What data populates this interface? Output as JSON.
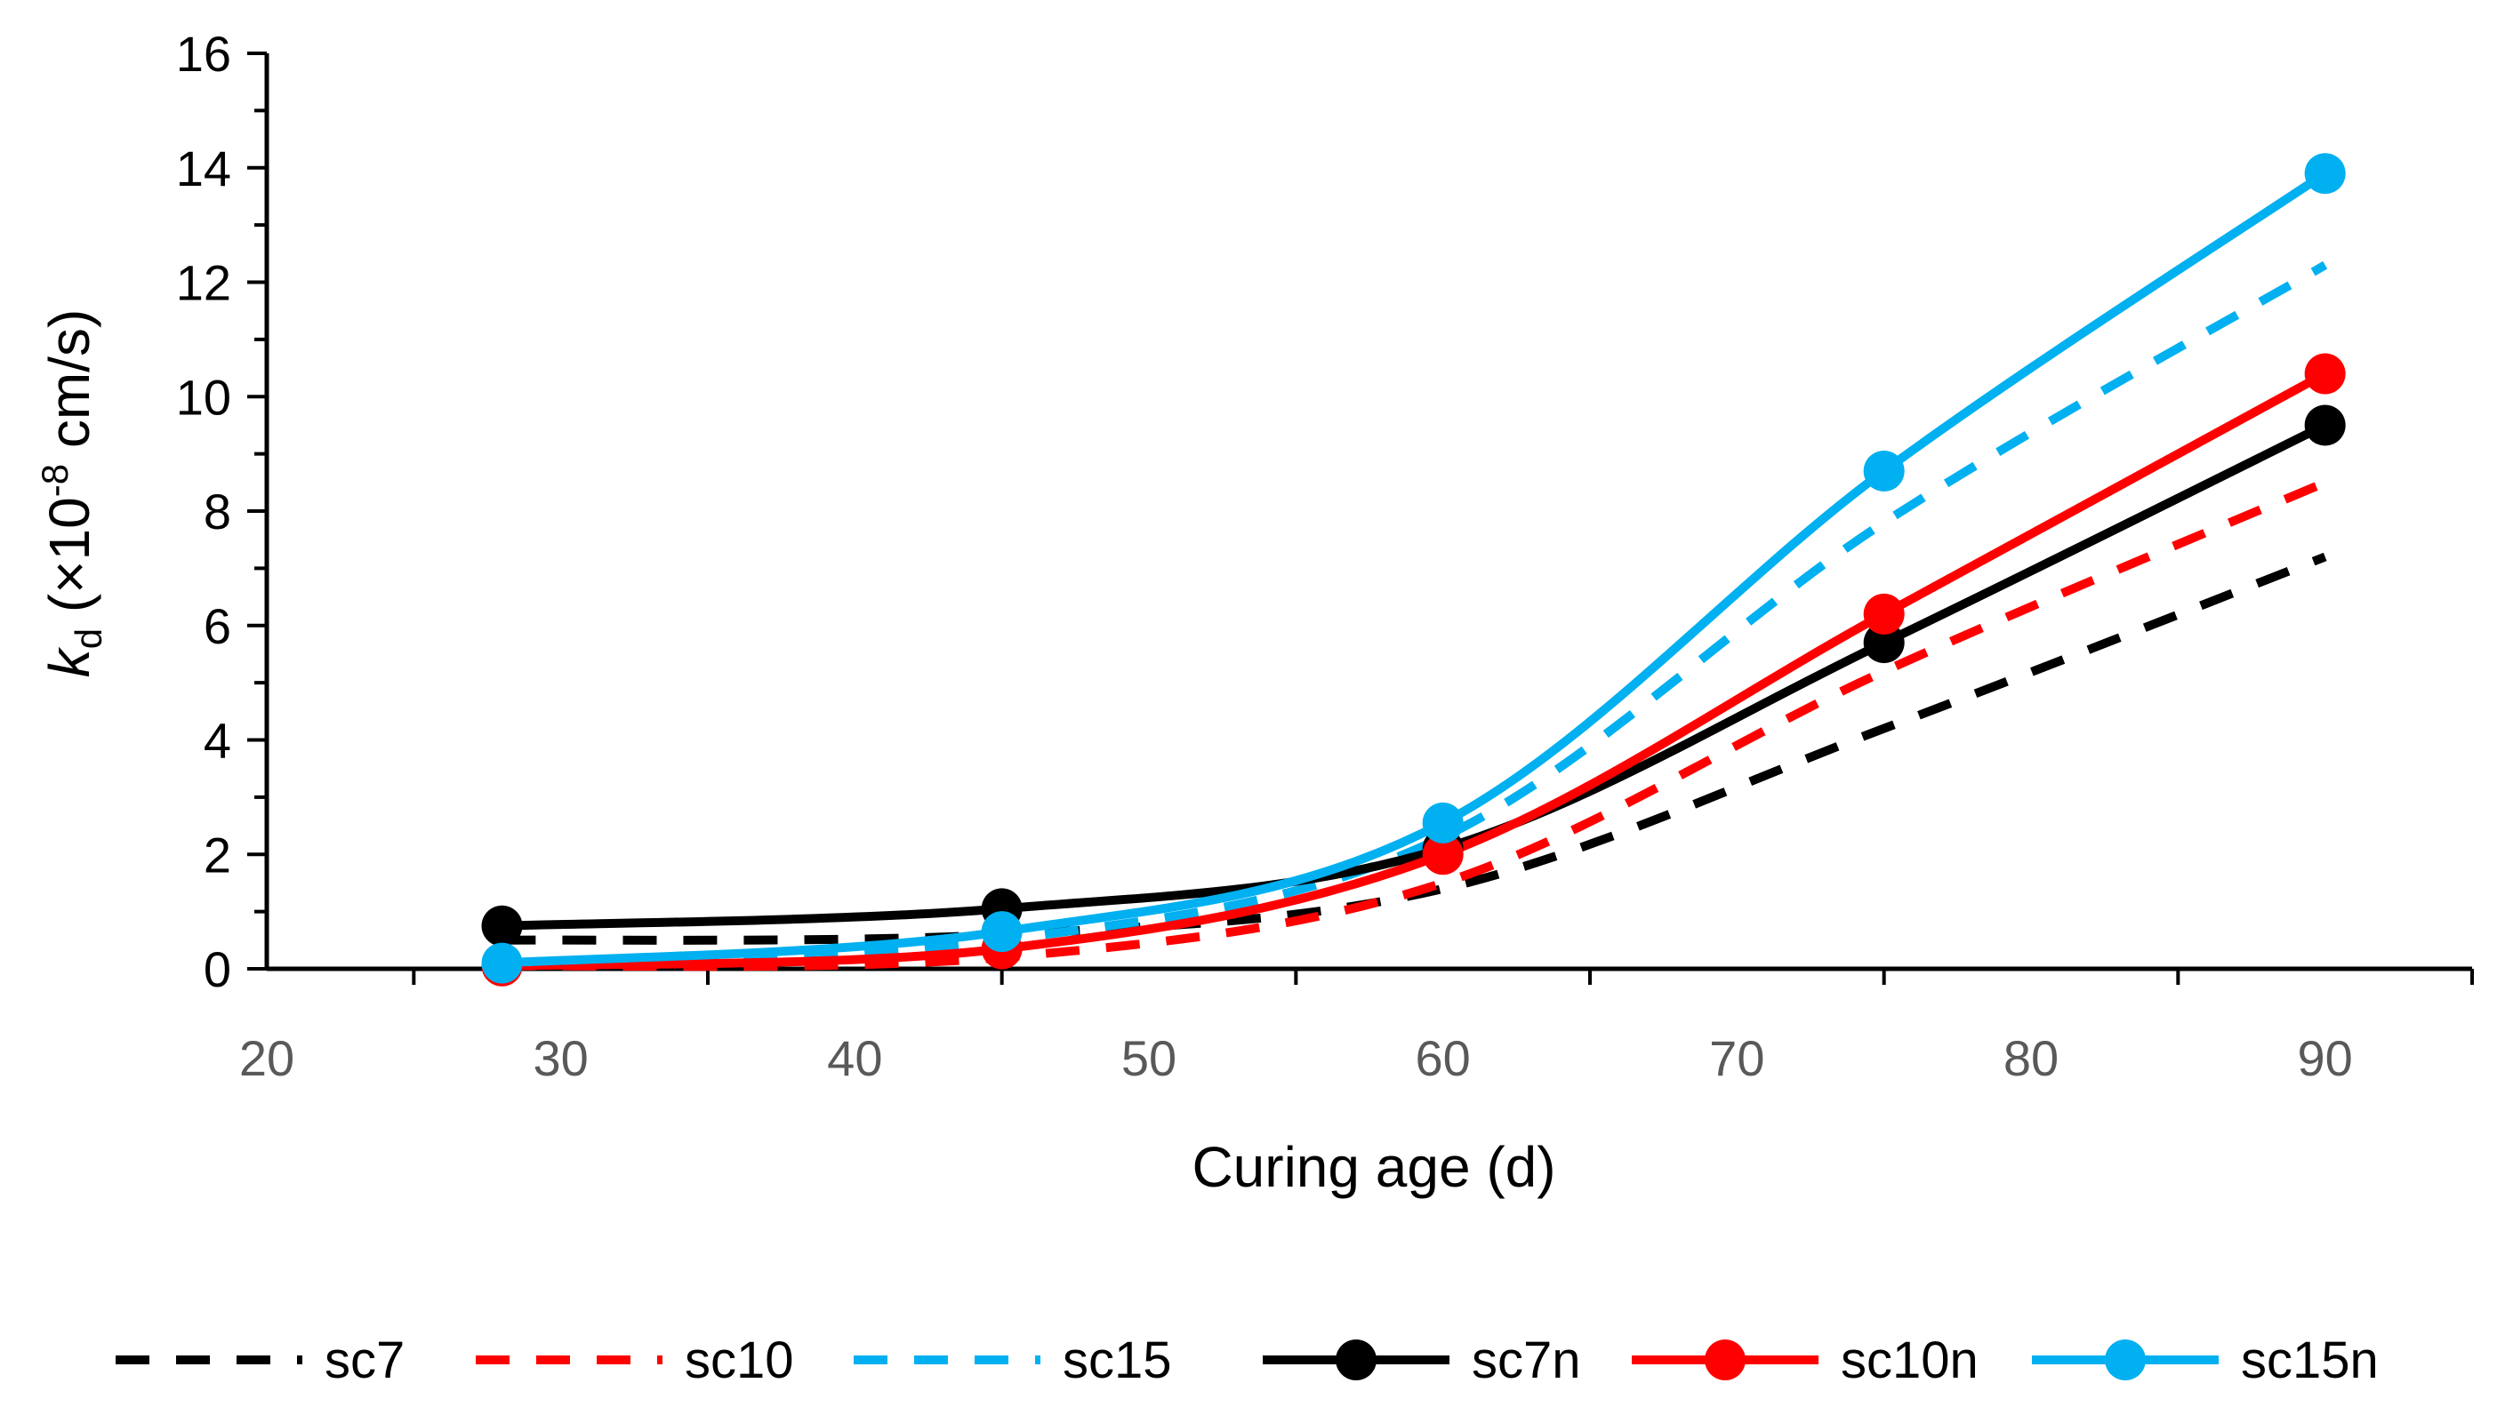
{
  "chart_data": {
    "type": "line",
    "xlabel": "Curing age (d)",
    "ylabel": {
      "base": "k",
      "subscript": "d",
      "prefix": " (×10",
      "exponent": "-8",
      "suffix": " cm/s)"
    },
    "xlim": [
      20,
      95
    ],
    "ylim": [
      0,
      16
    ],
    "x_ticks": [
      20,
      30,
      40,
      50,
      60,
      70,
      80,
      90
    ],
    "y_ticks": [
      0,
      2,
      4,
      6,
      8,
      10,
      12,
      14,
      16
    ],
    "x_tick_labels": [
      "20",
      "30",
      "40",
      "50",
      "60",
      "70",
      "80",
      "90"
    ],
    "y_tick_labels": [
      "0",
      "2",
      "4",
      "6",
      "8",
      "10",
      "12",
      "14",
      "16"
    ],
    "grid": false,
    "legend_position": "bottom",
    "series": [
      {
        "name": "sc7",
        "style": "dashed",
        "markers": false,
        "color": "#000000",
        "x": [
          28,
          45,
          60,
          75,
          90
        ],
        "y": [
          0.5,
          0.6,
          1.4,
          4.2,
          7.2
        ]
      },
      {
        "name": "sc10",
        "style": "dashed",
        "markers": false,
        "color": "#ff0000",
        "x": [
          28,
          45,
          60,
          75,
          90
        ],
        "y": [
          0.05,
          0.2,
          1.5,
          5.2,
          8.5
        ]
      },
      {
        "name": "sc15",
        "style": "dashed",
        "markers": false,
        "color": "#00b0f0",
        "x": [
          28,
          45,
          60,
          75,
          90
        ],
        "y": [
          0.05,
          0.5,
          2.3,
          7.8,
          12.3
        ]
      },
      {
        "name": "sc7n",
        "style": "solid",
        "markers": true,
        "color": "#000000",
        "x": [
          28,
          45,
          60,
          75,
          90
        ],
        "y": [
          0.75,
          1.05,
          2.1,
          5.7,
          9.5
        ]
      },
      {
        "name": "sc10n",
        "style": "solid",
        "markers": true,
        "color": "#ff0000",
        "x": [
          28,
          45,
          60,
          75,
          90
        ],
        "y": [
          0.05,
          0.35,
          2.0,
          6.2,
          10.4
        ]
      },
      {
        "name": "sc15n",
        "style": "solid",
        "markers": true,
        "color": "#00b0f0",
        "x": [
          28,
          45,
          60,
          75,
          90
        ],
        "y": [
          0.1,
          0.65,
          2.55,
          8.7,
          13.9
        ]
      }
    ]
  }
}
